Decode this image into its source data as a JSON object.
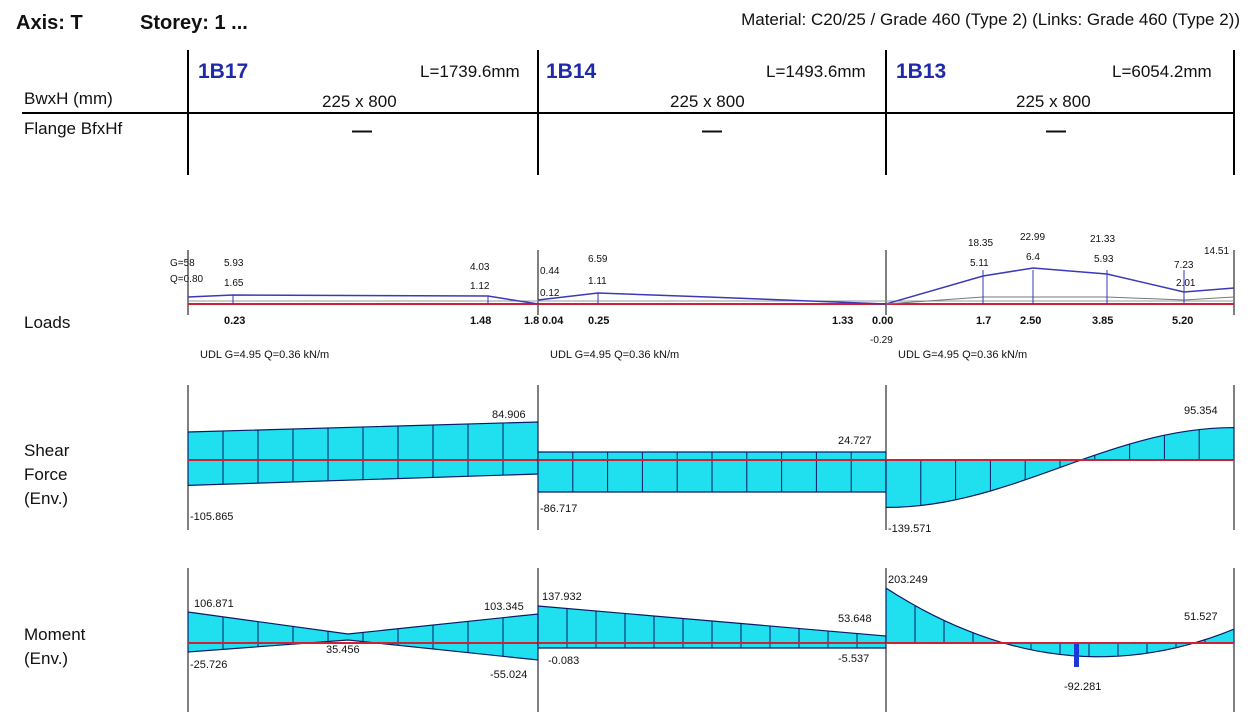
{
  "header": {
    "axis": "Axis: T",
    "storey": "Storey: 1 ...",
    "material": "Material: C20/25 / Grade 460 (Type 2) (Links: Grade 460 (Type 2))"
  },
  "rows": {
    "bxh": "BwxH (mm)",
    "flange": "Flange BfxHf",
    "loads": "Loads",
    "shear_1": "Shear",
    "shear_2": "Force",
    "shear_3": "(Env.)",
    "moment_1": "Moment",
    "moment_2": "(Env.)"
  },
  "beams": [
    {
      "id": "1B17",
      "length": "L=1739.6mm",
      "size": "225 x 800",
      "flange": "—",
      "udl": "UDL G=4.95 Q=0.36 kN/m",
      "load_positions": [
        {
          "label": "0.23",
          "pos": 0.23
        },
        {
          "label": "1.48",
          "pos": 1.48
        },
        {
          "label": "1.8",
          "pos": 1.8
        }
      ],
      "load_values": [
        {
          "label": "G=58",
          "side": "left"
        },
        {
          "label": "Q=0.80",
          "side": "left"
        },
        {
          "label": "5.93",
          "side": "top"
        },
        {
          "label": "1.65",
          "side": "mid"
        },
        {
          "label": "4.03",
          "side": "top"
        },
        {
          "label": "1.12",
          "side": "mid"
        }
      ],
      "shear": {
        "start": -105.865,
        "end": 84.906,
        "start_label": "-105.865",
        "end_label": "84.906"
      },
      "moment": {
        "start_top": "106.871",
        "end_top": "103.345",
        "start_bottom": "-25.726",
        "end_bottom": "-55.024",
        "mid": "35.456"
      }
    },
    {
      "id": "1B14",
      "length": "L=1493.6mm",
      "size": "225 x 800",
      "flange": "—",
      "udl": "UDL G=4.95 Q=0.36 kN/m",
      "load_positions": [
        {
          "label": "0.04",
          "pos": 0.04
        },
        {
          "label": "0.25",
          "pos": 0.25
        },
        {
          "label": "1.33",
          "pos": 1.33
        }
      ],
      "load_values": [
        {
          "label": "0.44",
          "side": "left"
        },
        {
          "label": "0.12",
          "side": "left"
        },
        {
          "label": "6.59",
          "side": "top"
        },
        {
          "label": "1.11",
          "side": "mid"
        }
      ],
      "shear": {
        "start": -86.717,
        "end": 24.727,
        "start_label": "-86.717",
        "end_label": "24.727"
      },
      "moment": {
        "start_top": "137.932",
        "end_top": "53.648",
        "start_bottom": "-0.083",
        "end_bottom": "-5.537",
        "mid": ""
      }
    },
    {
      "id": "1B13",
      "length": "L=6054.2mm",
      "size": "225 x 800",
      "flange": "—",
      "udl": "UDL G=4.95 Q=0.36 kN/m",
      "load_positions": [
        {
          "label": "0.00",
          "pos": 0.0
        },
        {
          "label": "1.7",
          "pos": 1.7
        },
        {
          "label": "2.50",
          "pos": 2.5
        },
        {
          "label": "3.85",
          "pos": 3.85
        },
        {
          "label": "5.20",
          "pos": 5.2
        }
      ],
      "load_neg_label": "-0.29",
      "load_values": [
        {
          "label": "18.35",
          "side": "top"
        },
        {
          "label": "5.11",
          "side": "mid"
        },
        {
          "label": "22.99",
          "side": "top"
        },
        {
          "label": "6.4",
          "side": "mid"
        },
        {
          "label": "21.33",
          "side": "top"
        },
        {
          "label": "5.93",
          "side": "mid"
        },
        {
          "label": "7.23",
          "side": "top"
        },
        {
          "label": "2.01",
          "side": "mid"
        },
        {
          "label": "14.51",
          "side": "top"
        }
      ],
      "shear": {
        "start": -139.571,
        "end": 95.354,
        "start_label": "-139.571",
        "end_label": "95.354"
      },
      "moment": {
        "start_top": "203.249",
        "end_top": "51.527",
        "start_bottom": "",
        "end_bottom": "",
        "mid": "-92.281"
      }
    }
  ],
  "colors": {
    "fill": "#20e0f0",
    "stroke": "#0a1a66",
    "baseline": "#cc2233",
    "load_line": "#3a3ab8",
    "accent": "#1f2aa8"
  }
}
